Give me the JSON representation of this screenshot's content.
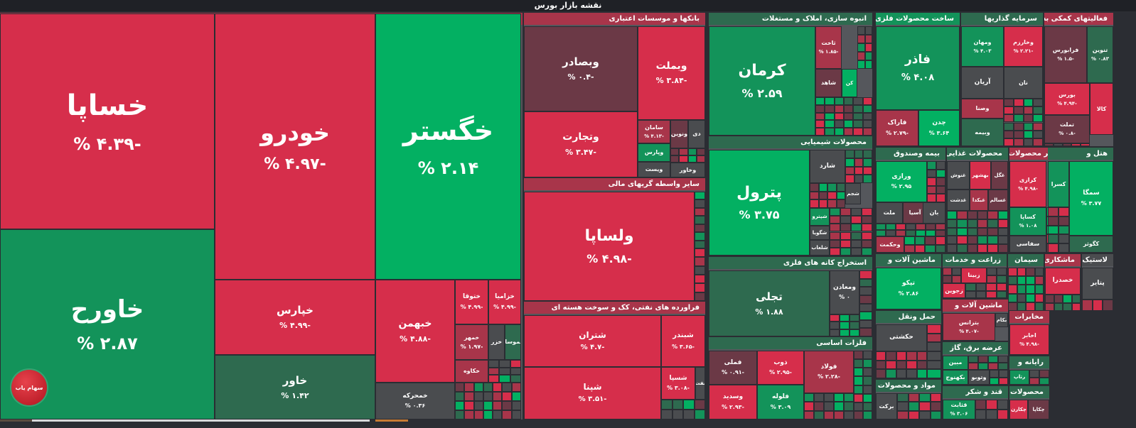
{
  "page": {
    "title": "نقشه بازار بورس"
  },
  "logo": {
    "label": "سهام یاب"
  },
  "colors": {
    "strong_red": "#d62e4b",
    "mid_red": "#a8354a",
    "dark_red": "#6b3946",
    "neutral": "#4a4c4f",
    "dark_green": "#2e6a4f",
    "mid_green": "#13935a",
    "strong_green": "#03b062"
  },
  "chart_data": {
    "type": "treemap",
    "title": "نقشه بازار بورس",
    "sectors": [
      {
        "name": "خودرو و ساخت قطعات",
        "tiles": [
          {
            "symbol": "خساپا",
            "change": "-۴.۳۹ %"
          },
          {
            "symbol": "خاورح",
            "change": "۲.۸۷ %"
          },
          {
            "symbol": "خودرو",
            "change": "-۴.۹۷ %"
          },
          {
            "symbol": "خپارس",
            "change": "-۴.۹۹ %"
          },
          {
            "symbol": "خاور",
            "change": "۱.۴۲ %"
          },
          {
            "symbol": "خگستر",
            "change": "۲.۱۴ %"
          },
          {
            "symbol": "خبهمن",
            "change": "-۴.۸۸ %"
          },
          {
            "symbol": "خمحرکه",
            "change": "۰.۳۶ %"
          },
          {
            "symbol": "ختوقا",
            "change": "-۴.۹۹ %"
          },
          {
            "symbol": "خزامیا",
            "change": "-۴.۹۹ %"
          },
          {
            "symbol": "خمهر",
            "change": "-۱.۹۷ %"
          },
          {
            "symbol": "خزر",
            "change": ""
          },
          {
            "symbol": "خموساز",
            "change": ""
          },
          {
            "symbol": "خکاوه",
            "change": ""
          }
        ]
      },
      {
        "name": "بانکها و موسسات اعتباری",
        "tiles": [
          {
            "symbol": "وبصادر",
            "change": "-۰.۴ %"
          },
          {
            "symbol": "وبملت",
            "change": "-۳.۸۴ %"
          },
          {
            "symbol": "وتجارت",
            "change": "-۳.۴۷ %"
          },
          {
            "symbol": "سامان",
            "change": "-۴.۱۳ %"
          },
          {
            "symbol": "وپارس",
            "change": ""
          },
          {
            "symbol": "ویست",
            "change": ""
          },
          {
            "symbol": "ونوین",
            "change": ""
          },
          {
            "symbol": "دی",
            "change": ""
          },
          {
            "symbol": "وخاور",
            "change": ""
          }
        ]
      },
      {
        "name": "سایر واسطه گریهای مالی",
        "tiles": [
          {
            "symbol": "ولساپا",
            "change": "-۴.۹۸ %"
          }
        ]
      },
      {
        "name": "فراورده های نفتی، کک و سوخت هسته ای",
        "tiles": [
          {
            "symbol": "شتران",
            "change": "-۴.۷ %"
          },
          {
            "symbol": "شپنا",
            "change": "-۳.۵۱ %"
          },
          {
            "symbol": "شبندر",
            "change": "-۳.۶۵ %"
          },
          {
            "symbol": "شسپا",
            "change": "-۳.۰۸ %"
          },
          {
            "symbol": "نفت",
            "change": ""
          }
        ]
      },
      {
        "name": "انبوه سازی، املاک و مستغلات",
        "tiles": [
          {
            "symbol": "کرمان",
            "change": "۲.۵۹ %"
          },
          {
            "symbol": "ثاخت",
            "change": "-۱.۸۵ %"
          },
          {
            "symbol": "شاهد",
            "change": ""
          },
          {
            "symbol": "کن",
            "change": ""
          }
        ]
      },
      {
        "name": "محصولات شیمیایی",
        "tiles": [
          {
            "symbol": "پترول",
            "change": "۳.۷۵ %"
          },
          {
            "symbol": "شارد",
            "change": ""
          },
          {
            "symbol": "شجم",
            "change": ""
          },
          {
            "symbol": "شپترو",
            "change": ""
          },
          {
            "symbol": "شگویا",
            "change": ""
          },
          {
            "symbol": "شلعاب",
            "change": ""
          }
        ]
      },
      {
        "name": "استخراج کانه های فلزی",
        "tiles": [
          {
            "symbol": "تجلی",
            "change": "۱.۸۸ %"
          },
          {
            "symbol": "ومعادن",
            "change": "۰ %"
          }
        ]
      },
      {
        "name": "فلزات اساسی",
        "tiles": [
          {
            "symbol": "فملی",
            "change": "-۰.۹۱ %"
          },
          {
            "symbol": "ذوب",
            "change": "-۲.۹۵ %"
          },
          {
            "symbol": "فولاد",
            "change": "-۲.۲۸ %"
          },
          {
            "symbol": "وسدید",
            "change": "-۲.۹۳ %"
          },
          {
            "symbol": "فلوله",
            "change": "۳.۰۹ %"
          }
        ]
      },
      {
        "name": "ساخت محصولات فلزی",
        "tiles": [
          {
            "symbol": "فاذر",
            "change": "۴.۰۸ %"
          },
          {
            "symbol": "فاراک",
            "change": "-۲.۷۹ %"
          },
          {
            "symbol": "چدن",
            "change": "۳.۶۴ %"
          }
        ]
      },
      {
        "name": "سرمایه گذاریها",
        "tiles": [
          {
            "symbol": "ومهان",
            "change": "۴.۰۳ %"
          },
          {
            "symbol": "وخارزم",
            "change": "-۲.۲۱ %"
          },
          {
            "symbol": "آریان",
            "change": ""
          },
          {
            "symbol": "نان",
            "change": ""
          },
          {
            "symbol": "وصنا",
            "change": ""
          },
          {
            "symbol": "وبیمه",
            "change": ""
          }
        ]
      },
      {
        "name": "فعالیتهای کمکی به",
        "tiles": [
          {
            "symbol": "فرابورس",
            "change": "-۱.۵ %"
          },
          {
            "symbol": "تنوین",
            "change": "۰.۸۳ %"
          },
          {
            "symbol": "بورس",
            "change": "-۴.۹۴ %"
          },
          {
            "symbol": "کالا",
            "change": ""
          },
          {
            "symbol": "تملت",
            "change": "-۰.۸ %"
          }
        ]
      },
      {
        "name": "بیمه وصندوق",
        "tiles": [
          {
            "symbol": "ورازی",
            "change": "۲.۹۵ %"
          },
          {
            "symbol": "ملت",
            "change": ""
          },
          {
            "symbol": "آسیا",
            "change": ""
          },
          {
            "symbol": "بان",
            "change": ""
          },
          {
            "symbol": "وحکمت",
            "change": ""
          }
        ]
      },
      {
        "name": "محصولات غذایی",
        "tiles": [
          {
            "symbol": "بهشهر",
            "change": ""
          },
          {
            "symbol": "غنوش",
            "change": ""
          },
          {
            "symbol": "غگل",
            "change": ""
          },
          {
            "symbol": "غدشت",
            "change": ""
          },
          {
            "symbol": "غبکدا",
            "change": ""
          },
          {
            "symbol": "غسالم",
            "change": ""
          }
        ]
      },
      {
        "name": "سایر محصولات",
        "tiles": [
          {
            "symbol": "کرازی",
            "change": "-۴.۹۸ %"
          },
          {
            "symbol": "کساپا",
            "change": "۱.۰۸ %"
          },
          {
            "symbol": "سفاسی",
            "change": ""
          }
        ]
      },
      {
        "name": "هتل و",
        "tiles": [
          {
            "symbol": "کسرا",
            "change": ""
          },
          {
            "symbol": "سمگا",
            "change": "۳.۷۷ %"
          },
          {
            "symbol": "کگوثر",
            "change": ""
          }
        ]
      },
      {
        "name": "ماشین آلات و",
        "tiles": [
          {
            "symbol": "تپکو",
            "change": "۲.۸۶ %"
          }
        ]
      },
      {
        "name": "زراعت و خدمات",
        "tiles": [
          {
            "symbol": "زبینا",
            "change": ""
          },
          {
            "symbol": "زجوین",
            "change": ""
          }
        ]
      },
      {
        "name": "سیمان",
        "tiles": []
      },
      {
        "name": "ماشین آلات و",
        "tiles": [
          {
            "symbol": "بترانس",
            "change": "-۴.۰۷ %"
          },
          {
            "symbol": "بکام",
            "change": ""
          },
          {
            "symbol": "بنیرو",
            "change": ""
          }
        ]
      },
      {
        "name": "ماشکاری",
        "tiles": [
          {
            "symbol": "خصدرا",
            "change": ""
          }
        ]
      },
      {
        "name": "لاستیک",
        "tiles": [
          {
            "symbol": "پتایر",
            "change": ""
          }
        ]
      },
      {
        "name": "حمل ونقل",
        "tiles": [
          {
            "symbol": "حکشتی",
            "change": ""
          }
        ]
      },
      {
        "name": "مخابرات",
        "tiles": [
          {
            "symbol": "اخابر",
            "change": "-۴.۹۸ %"
          }
        ]
      },
      {
        "name": "عرضه برق، گاز",
        "tiles": [
          {
            "symbol": "مبین",
            "change": ""
          },
          {
            "symbol": "بکهنوج",
            "change": ""
          },
          {
            "symbol": "وتوبو",
            "change": ""
          }
        ]
      },
      {
        "name": "رایانه و",
        "tiles": [
          {
            "symbol": "رتاپ",
            "change": ""
          }
        ]
      },
      {
        "name": "مواد و محصولات",
        "tiles": [
          {
            "symbol": "برکت",
            "change": ""
          }
        ]
      },
      {
        "name": "قند و شکر",
        "tiles": [
          {
            "symbol": "قثابت",
            "change": "۳.۰۶ %"
          }
        ]
      },
      {
        "name": "محصولات",
        "tiles": [
          {
            "symbol": "چکاپا",
            "change": ""
          },
          {
            "symbol": "چکارن",
            "change": ""
          }
        ]
      }
    ]
  }
}
